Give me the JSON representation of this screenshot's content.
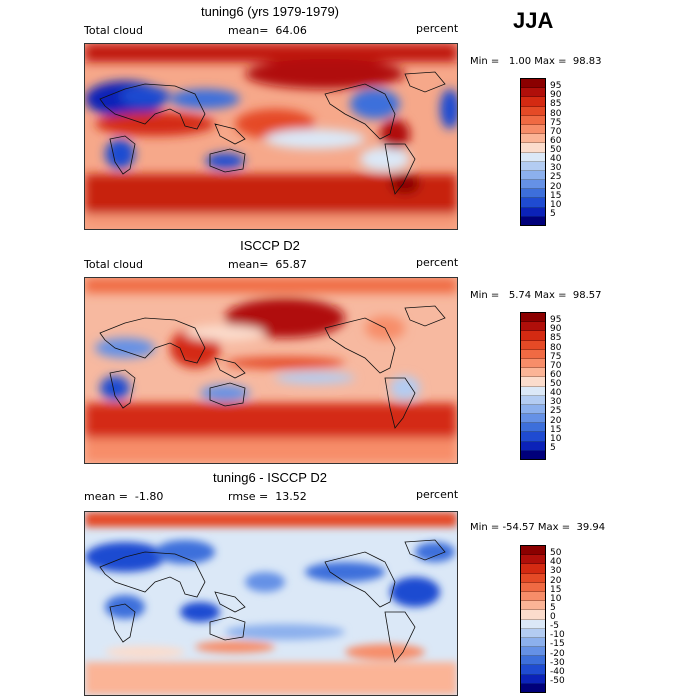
{
  "season": "JJA",
  "panels": [
    {
      "title": "tuning6 (yrs 1979-1979)",
      "left_label": "Total cloud",
      "center_label": "mean=  64.06",
      "right_label": "percent",
      "minmax": "Min =   1.00 Max =  98.83",
      "colorbar": {
        "levels": [
          "95",
          "90",
          "85",
          "80",
          "75",
          "70",
          "60",
          "50",
          "40",
          "30",
          "25",
          "20",
          "15",
          "10",
          "5"
        ],
        "colors": [
          "#8b0000",
          "#b00f0a",
          "#d42a12",
          "#e54a26",
          "#f06a43",
          "#f78d69",
          "#fbb496",
          "#fbdccc",
          "#dbe8f7",
          "#b3ccf2",
          "#8cb0ed",
          "#6591e6",
          "#3d6fdb",
          "#1f4bd1",
          "#0b22b8",
          "#00007a"
        ]
      },
      "map_label": "tuning6 total cloud JJA map"
    },
    {
      "title": "ISCCP D2",
      "left_label": "Total cloud",
      "center_label": "mean=  65.87",
      "right_label": "percent",
      "minmax": "Min =   5.74 Max =  98.57",
      "colorbar": {
        "levels": [
          "95",
          "90",
          "85",
          "80",
          "75",
          "70",
          "60",
          "50",
          "40",
          "30",
          "25",
          "20",
          "15",
          "10",
          "5"
        ],
        "colors": [
          "#8b0000",
          "#b00f0a",
          "#d42a12",
          "#e54a26",
          "#f06a43",
          "#f78d69",
          "#fbb496",
          "#fbdccc",
          "#dbe8f7",
          "#b3ccf2",
          "#8cb0ed",
          "#6591e6",
          "#3d6fdb",
          "#1f4bd1",
          "#0b22b8",
          "#00007a"
        ]
      },
      "map_label": "ISCCP D2 total cloud JJA map"
    },
    {
      "title": "tuning6 - ISCCP D2",
      "left_label": "mean =  -1.80",
      "center_label": "rmse =  13.52",
      "right_label": "percent",
      "minmax": "Min = -54.57 Max =  39.94",
      "colorbar": {
        "levels": [
          "50",
          "40",
          "30",
          "20",
          "15",
          "10",
          "5",
          "0",
          "-5",
          "-10",
          "-15",
          "-20",
          "-30",
          "-40",
          "-50"
        ],
        "colors": [
          "#8b0000",
          "#b00f0a",
          "#d42a12",
          "#e54a26",
          "#f06a43",
          "#f78d69",
          "#fbb496",
          "#fbdccc",
          "#dbe8f7",
          "#b3ccf2",
          "#8cb0ed",
          "#6591e6",
          "#3d6fdb",
          "#1f4bd1",
          "#0b22b8",
          "#00007a"
        ]
      },
      "map_label": "tuning6 minus ISCCP D2 difference map"
    }
  ]
}
